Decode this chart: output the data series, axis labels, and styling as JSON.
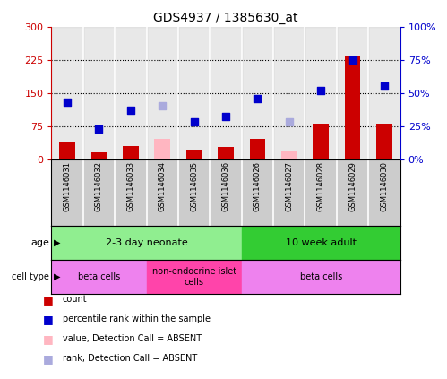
{
  "title": "GDS4937 / 1385630_at",
  "samples": [
    "GSM1146031",
    "GSM1146032",
    "GSM1146033",
    "GSM1146034",
    "GSM1146035",
    "GSM1146036",
    "GSM1146026",
    "GSM1146027",
    "GSM1146028",
    "GSM1146029",
    "GSM1146030"
  ],
  "count_values": [
    40,
    15,
    30,
    null,
    22,
    28,
    45,
    null,
    80,
    232,
    80
  ],
  "count_absent": [
    null,
    null,
    null,
    45,
    null,
    null,
    null,
    18,
    null,
    null,
    null
  ],
  "rank_values": [
    43,
    23,
    37,
    null,
    28,
    32,
    46,
    null,
    52,
    75,
    55
  ],
  "rank_absent": [
    null,
    null,
    null,
    40,
    null,
    null,
    null,
    28,
    null,
    null,
    null
  ],
  "ylim_left": [
    0,
    300
  ],
  "ylim_right": [
    0,
    100
  ],
  "yticks_left": [
    0,
    75,
    150,
    225,
    300
  ],
  "yticks_left_labels": [
    "0",
    "75",
    "150",
    "225",
    "300"
  ],
  "yticks_right": [
    0,
    25,
    50,
    75,
    100
  ],
  "yticks_right_labels": [
    "0%",
    "25%",
    "50%",
    "75%",
    "100%"
  ],
  "hlines": [
    75,
    150,
    225
  ],
  "age_groups": [
    {
      "label": "2-3 day neonate",
      "start": 0,
      "end": 6,
      "color": "#90EE90"
    },
    {
      "label": "10 week adult",
      "start": 6,
      "end": 11,
      "color": "#33CC33"
    }
  ],
  "cell_type_groups": [
    {
      "label": "beta cells",
      "start": 0,
      "end": 3,
      "color": "#EE82EE"
    },
    {
      "label": "non-endocrine islet\ncells",
      "start": 3,
      "end": 6,
      "color": "#FF44AA"
    },
    {
      "label": "beta cells",
      "start": 6,
      "end": 11,
      "color": "#EE82EE"
    }
  ],
  "bar_color_present": "#CC0000",
  "bar_color_absent": "#FFB6C1",
  "dot_color_present": "#0000CC",
  "dot_color_absent": "#AAAADD",
  "legend_items": [
    {
      "label": "count",
      "color": "#CC0000"
    },
    {
      "label": "percentile rank within the sample",
      "color": "#0000CC"
    },
    {
      "label": "value, Detection Call = ABSENT",
      "color": "#FFB6C1"
    },
    {
      "label": "rank, Detection Call = ABSENT",
      "color": "#AAAADD"
    }
  ],
  "left_axis_color": "#CC0000",
  "right_axis_color": "#0000CC",
  "col_bg_color": "#CCCCCC",
  "col_sep_color": "#FFFFFF"
}
